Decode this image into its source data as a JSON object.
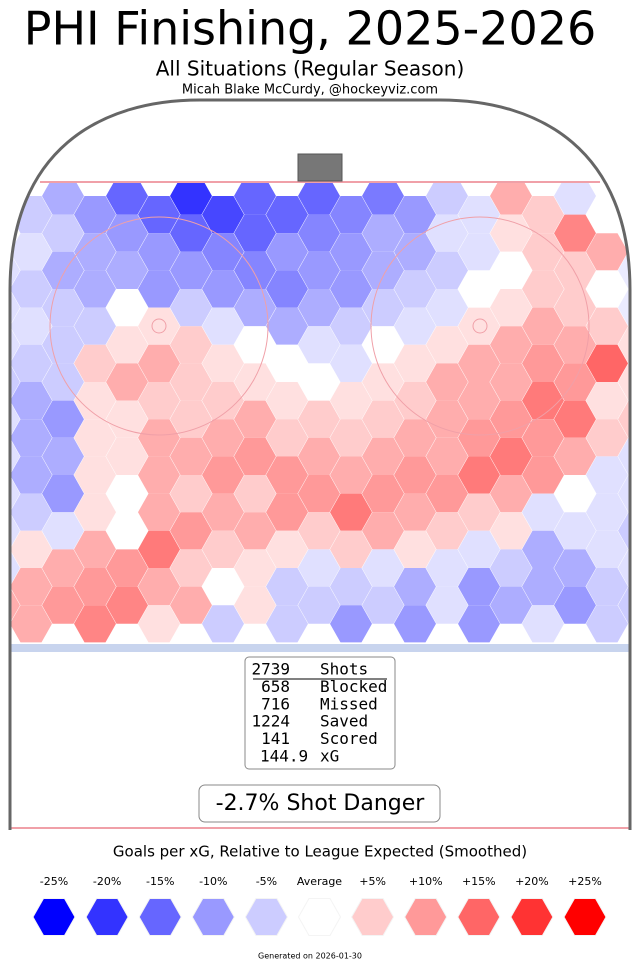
{
  "chart_data": {
    "type": "hexmap",
    "title": "PHI Finishing, 2025-2026",
    "subtitle": "All Situations (Regular Season)",
    "author": "Micah Blake McCurdy, @hockeyviz.com",
    "hex_values": [
      [
        0,
        -8,
        -15,
        -20,
        -15,
        -15,
        -13,
        -5,
        8,
        -3,
        0
      ],
      [
        -5,
        -10,
        -15,
        -18,
        -15,
        -12,
        -10,
        -3,
        5,
        0
      ],
      [
        0,
        -5,
        -10,
        -15,
        -15,
        -12,
        -8,
        -3,
        3,
        12,
        0
      ],
      [
        -3,
        -8,
        -10,
        -12,
        -10,
        -10,
        -8,
        -3,
        5,
        8
      ],
      [
        -3,
        -8,
        -8,
        -10,
        -12,
        -10,
        -8,
        -5,
        0,
        5,
        -2
      ],
      [
        -5,
        -8,
        -10,
        -10,
        -12,
        -10,
        -5,
        0,
        5,
        0
      ],
      [
        -3,
        -5,
        0,
        -5,
        -8,
        -8,
        -5,
        -3,
        3,
        5,
        -2
      ],
      [
        -3,
        -5,
        3,
        -3,
        -8,
        -5,
        -3,
        3,
        8,
        5
      ],
      [
        -3,
        -5,
        3,
        5,
        0,
        -3,
        0,
        3,
        8,
        8,
        3
      ],
      [
        -5,
        5,
        8,
        3,
        0,
        -3,
        3,
        8,
        10,
        15
      ],
      [
        -5,
        -5,
        8,
        5,
        3,
        0,
        3,
        8,
        8,
        10,
        3
      ],
      [
        -8,
        3,
        5,
        5,
        3,
        3,
        5,
        8,
        13,
        3
      ],
      [
        -3,
        -10,
        3,
        5,
        8,
        5,
        5,
        8,
        10,
        13,
        5
      ],
      [
        -8,
        3,
        8,
        8,
        5,
        5,
        8,
        10,
        10,
        5
      ],
      [
        -3,
        -8,
        3,
        8,
        10,
        8,
        8,
        8,
        13,
        8,
        -3
      ],
      [
        -8,
        3,
        8,
        10,
        10,
        8,
        10,
        13,
        10,
        -3
      ],
      [
        -3,
        -10,
        0,
        5,
        5,
        10,
        10,
        10,
        8,
        0,
        -3
      ],
      [
        -5,
        3,
        8,
        8,
        10,
        13,
        8,
        5,
        -3,
        -3
      ],
      [
        -3,
        -3,
        0,
        10,
        8,
        5,
        8,
        5,
        3,
        -3,
        -5
      ],
      [
        3,
        8,
        13,
        5,
        3,
        5,
        3,
        -3,
        -8,
        -3
      ],
      [
        -3,
        8,
        10,
        5,
        3,
        -3,
        -3,
        -3,
        -5,
        -8,
        -3
      ],
      [
        8,
        10,
        8,
        0,
        -5,
        -5,
        -8,
        -10,
        -8,
        -5
      ],
      [
        8,
        10,
        12,
        8,
        3,
        -5,
        -5,
        -3,
        -8,
        -10,
        -5
      ],
      [
        8,
        12,
        3,
        -5,
        -5,
        -10,
        -10,
        -10,
        -3,
        -5
      ]
    ],
    "stats": [
      {
        "count": 2739,
        "label": "Shots"
      },
      {
        "count": 658,
        "label": "Blocked"
      },
      {
        "count": 716,
        "label": "Missed"
      },
      {
        "count": 1224,
        "label": "Saved"
      },
      {
        "count": 141,
        "label": "Scored"
      }
    ],
    "xg": 144.9,
    "xg_label": "xG",
    "shot_danger": "-2.7% Shot Danger",
    "legend_title": "Goals per xG, Relative to League Expected (Smoothed)",
    "legend": [
      {
        "value": -25,
        "label": "-25%"
      },
      {
        "value": -20,
        "label": "-20%"
      },
      {
        "value": -15,
        "label": "-15%"
      },
      {
        "value": -10,
        "label": "-10%"
      },
      {
        "value": -5,
        "label": "-5%"
      },
      {
        "value": 0,
        "label": "Average"
      },
      {
        "value": 5,
        "label": "+5%"
      },
      {
        "value": 10,
        "label": "+10%"
      },
      {
        "value": 15,
        "label": "+15%"
      },
      {
        "value": 20,
        "label": "+20%"
      },
      {
        "value": 25,
        "label": "+25%"
      }
    ],
    "footer": "Generated on 2026-01-30"
  }
}
